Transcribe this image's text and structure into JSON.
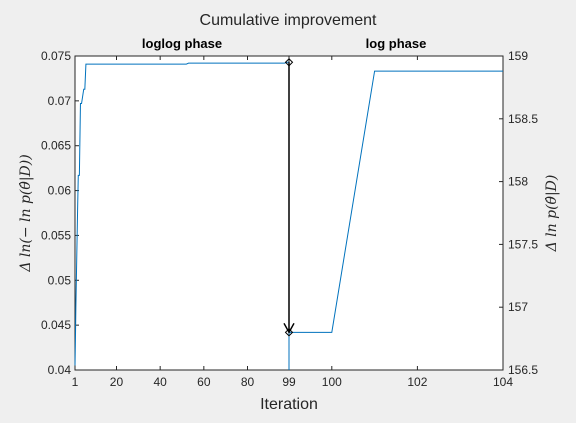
{
  "chart_data": {
    "type": "line",
    "title": "Cumulative improvement",
    "xlabel": "Iteration",
    "left_panel": {
      "phase_label": "loglog phase",
      "ylabel": "Δ ln(− ln p(θ̂|D))",
      "xlim": [
        1,
        99
      ],
      "ylim": [
        0.04,
        0.075
      ],
      "x_ticks": [
        1,
        20,
        40,
        60,
        80,
        99
      ],
      "y_ticks": [
        0.04,
        0.045,
        0.05,
        0.055,
        0.06,
        0.065,
        0.07,
        0.075
      ],
      "series": [
        {
          "color": "#0072bd",
          "x": [
            1,
            1.2,
            1.4,
            2.2,
            2.5,
            3,
            3.5,
            4,
            5,
            5.5,
            6,
            6.5,
            7,
            52,
            53,
            97,
            98,
            99
          ],
          "y": [
            0.0405,
            0.0435,
            0.047,
            0.058,
            0.0617,
            0.0617,
            0.0697,
            0.0697,
            0.0713,
            0.0713,
            0.0741,
            0.0741,
            0.0741,
            0.0741,
            0.0742,
            0.0742,
            0.0743,
            0.0743
          ]
        }
      ]
    },
    "right_panel": {
      "phase_label": "log phase",
      "ylabel": "Δ ln p(θ̂|D)",
      "xlim": [
        99,
        104
      ],
      "ylim": [
        156.5,
        159
      ],
      "x_ticks": [
        99,
        100,
        102,
        104
      ],
      "y_ticks": [
        156.5,
        157,
        157.5,
        158,
        158.5,
        159
      ],
      "series": [
        {
          "color": "#0072bd",
          "x": [
            99,
            99,
            100,
            101,
            104
          ],
          "y": [
            156.5,
            156.8,
            156.8,
            158.88,
            158.88
          ]
        }
      ]
    },
    "annotations": [
      {
        "type": "arrow",
        "from": {
          "panel": "left",
          "x": 99,
          "y": 0.0743
        },
        "to": {
          "panel": "right",
          "x": 99,
          "y": 156.8
        },
        "color": "#000000"
      }
    ]
  }
}
